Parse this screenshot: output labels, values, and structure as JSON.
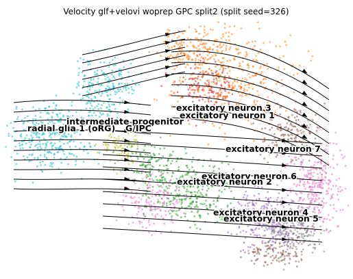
{
  "chart_data": {
    "type": "scatter",
    "title": "Velocity glf+velovi woprep GPC split2 (split seed=326)",
    "xlabel": "",
    "ylabel": "",
    "grid": false,
    "axes_visible": false,
    "overlay": "velocity streamlines (black arrows)",
    "clusters": [
      {
        "name": "radial glia 1 (oRG)",
        "color": "#17becf"
      },
      {
        "name": "intermediate progenitor",
        "color": "#bcbd22"
      },
      {
        "name": "excitatory neuron 3",
        "color": "#d62728"
      },
      {
        "name": "excitatory neuron 1",
        "color": "#ff7f0e"
      },
      {
        "name": "excitatory neuron 7",
        "color": "#8c564b"
      },
      {
        "name": "excitatory neuron 6",
        "color": "#e377c2"
      },
      {
        "name": "excitatory neuron 2",
        "color": "#2ca02c"
      },
      {
        "name": "excitatory neuron 4",
        "color": "#9467bd"
      },
      {
        "name": "excitatory neuron 5",
        "color": "#7f7f7f"
      }
    ],
    "extra_labels": [
      "G/IPC"
    ]
  }
}
